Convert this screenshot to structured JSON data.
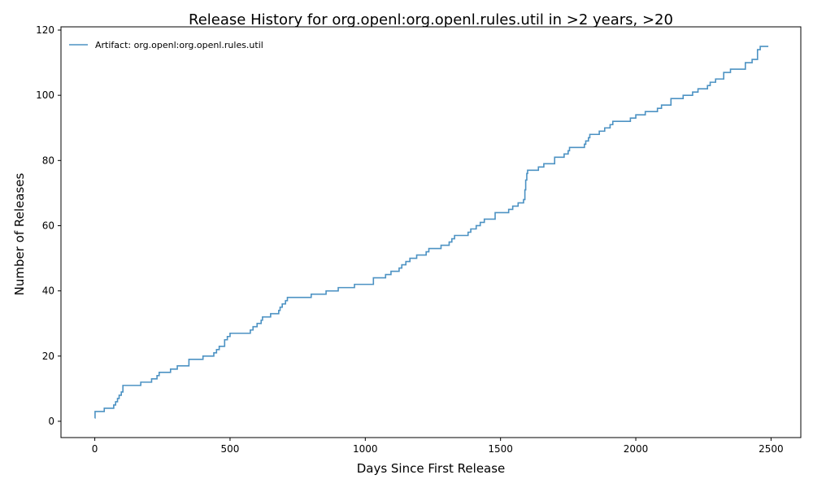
{
  "chart_data": {
    "type": "line",
    "title": "Release History for org.openl:org.openl.rules.util in >2 years, >20",
    "xlabel": "Days Since First Release",
    "ylabel": "Number of Releases",
    "xlim": [
      -125,
      2610
    ],
    "ylim": [
      -5,
      121
    ],
    "xticks": [
      0,
      500,
      1000,
      1500,
      2000,
      2500
    ],
    "yticks": [
      0,
      20,
      40,
      60,
      80,
      100,
      120
    ],
    "grid": false,
    "legend_position": "upper-left",
    "series": [
      {
        "name": "Artifact: org.openl:org.openl.rules.util",
        "color": "#1f77b4",
        "step": "post",
        "points": [
          [
            0,
            1
          ],
          [
            1,
            3
          ],
          [
            35,
            4
          ],
          [
            70,
            5
          ],
          [
            77,
            6
          ],
          [
            84,
            7
          ],
          [
            90,
            8
          ],
          [
            98,
            9
          ],
          [
            104,
            11
          ],
          [
            170,
            12
          ],
          [
            210,
            13
          ],
          [
            230,
            14
          ],
          [
            238,
            15
          ],
          [
            280,
            16
          ],
          [
            305,
            17
          ],
          [
            348,
            19
          ],
          [
            400,
            20
          ],
          [
            440,
            21
          ],
          [
            450,
            22
          ],
          [
            460,
            23
          ],
          [
            480,
            25
          ],
          [
            490,
            26
          ],
          [
            500,
            27
          ],
          [
            575,
            28
          ],
          [
            585,
            29
          ],
          [
            600,
            30
          ],
          [
            615,
            31
          ],
          [
            620,
            32
          ],
          [
            650,
            33
          ],
          [
            680,
            34
          ],
          [
            685,
            35
          ],
          [
            693,
            36
          ],
          [
            705,
            37
          ],
          [
            712,
            38
          ],
          [
            800,
            39
          ],
          [
            855,
            40
          ],
          [
            900,
            41
          ],
          [
            960,
            42
          ],
          [
            1030,
            44
          ],
          [
            1075,
            45
          ],
          [
            1095,
            46
          ],
          [
            1125,
            47
          ],
          [
            1135,
            48
          ],
          [
            1150,
            49
          ],
          [
            1165,
            50
          ],
          [
            1190,
            51
          ],
          [
            1225,
            52
          ],
          [
            1235,
            53
          ],
          [
            1280,
            54
          ],
          [
            1310,
            55
          ],
          [
            1320,
            56
          ],
          [
            1330,
            57
          ],
          [
            1380,
            58
          ],
          [
            1390,
            59
          ],
          [
            1410,
            60
          ],
          [
            1425,
            61
          ],
          [
            1440,
            62
          ],
          [
            1480,
            64
          ],
          [
            1530,
            65
          ],
          [
            1545,
            66
          ],
          [
            1565,
            67
          ],
          [
            1585,
            68
          ],
          [
            1590,
            71
          ],
          [
            1593,
            74
          ],
          [
            1597,
            76
          ],
          [
            1600,
            77
          ],
          [
            1640,
            78
          ],
          [
            1660,
            79
          ],
          [
            1700,
            81
          ],
          [
            1735,
            82
          ],
          [
            1750,
            83
          ],
          [
            1755,
            84
          ],
          [
            1810,
            85
          ],
          [
            1815,
            86
          ],
          [
            1825,
            87
          ],
          [
            1830,
            88
          ],
          [
            1865,
            89
          ],
          [
            1885,
            90
          ],
          [
            1905,
            91
          ],
          [
            1915,
            92
          ],
          [
            1980,
            93
          ],
          [
            2000,
            94
          ],
          [
            2035,
            95
          ],
          [
            2080,
            96
          ],
          [
            2095,
            97
          ],
          [
            2130,
            99
          ],
          [
            2175,
            100
          ],
          [
            2210,
            101
          ],
          [
            2230,
            102
          ],
          [
            2265,
            103
          ],
          [
            2275,
            104
          ],
          [
            2295,
            105
          ],
          [
            2325,
            107
          ],
          [
            2350,
            108
          ],
          [
            2405,
            110
          ],
          [
            2430,
            111
          ],
          [
            2450,
            114
          ],
          [
            2460,
            115
          ],
          [
            2490,
            115
          ]
        ]
      }
    ]
  }
}
